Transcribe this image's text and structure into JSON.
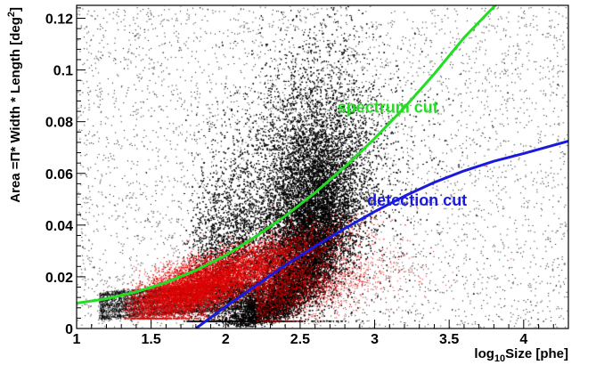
{
  "chart_data": {
    "type": "scatter",
    "title": "",
    "xlabel": {
      "pre": "log",
      "sub": "10",
      "post": "Size [phe]"
    },
    "ylabel": {
      "pre": "Area =Π* Width * Length [deg",
      "sup": "2",
      "post": "]"
    },
    "xlim": [
      1.0,
      4.3
    ],
    "ylim": [
      0.0,
      0.125
    ],
    "x_ticks": [
      1,
      1.5,
      2,
      2.5,
      3,
      3.5,
      4
    ],
    "x_tick_labels": [
      "1",
      "1.5",
      "2",
      "2.5",
      "3",
      "3.5",
      "4"
    ],
    "y_ticks": [
      0,
      0.02,
      0.04,
      0.06,
      0.08,
      0.1,
      0.12
    ],
    "y_tick_labels": [
      "0",
      "0.02",
      "0.04",
      "0.06",
      "0.08",
      "0.1",
      "0.12"
    ],
    "grid": false,
    "legend": "none",
    "scatter_populations": [
      {
        "color": "#000000"
      },
      {
        "color": "#dd0000"
      }
    ],
    "series": [
      {
        "name": "spectrum cut",
        "color": "#22dd22",
        "label_at": [
          2.75,
          0.0835
        ],
        "x": [
          1.0,
          1.2,
          1.4,
          1.6,
          1.8,
          2.0,
          2.2,
          2.4,
          2.6,
          2.8,
          3.0,
          3.2,
          3.4,
          3.6,
          3.8,
          3.85
        ],
        "y": [
          0.0098,
          0.0115,
          0.0142,
          0.0178,
          0.0225,
          0.0283,
          0.0355,
          0.0435,
          0.0525,
          0.0625,
          0.0735,
          0.0855,
          0.0985,
          0.1125,
          0.1245,
          0.127
        ]
      },
      {
        "name": "detection cut",
        "color": "#1a1adc",
        "label_at": [
          2.95,
          0.0475
        ],
        "x": [
          1.8,
          2.0,
          2.2,
          2.4,
          2.6,
          2.8,
          3.0,
          3.2,
          3.4,
          3.6,
          3.8,
          4.0,
          4.3
        ],
        "y": [
          0.0,
          0.0085,
          0.0165,
          0.0245,
          0.0318,
          0.0387,
          0.0452,
          0.0512,
          0.0565,
          0.061,
          0.0647,
          0.0677,
          0.0725
        ]
      }
    ]
  }
}
